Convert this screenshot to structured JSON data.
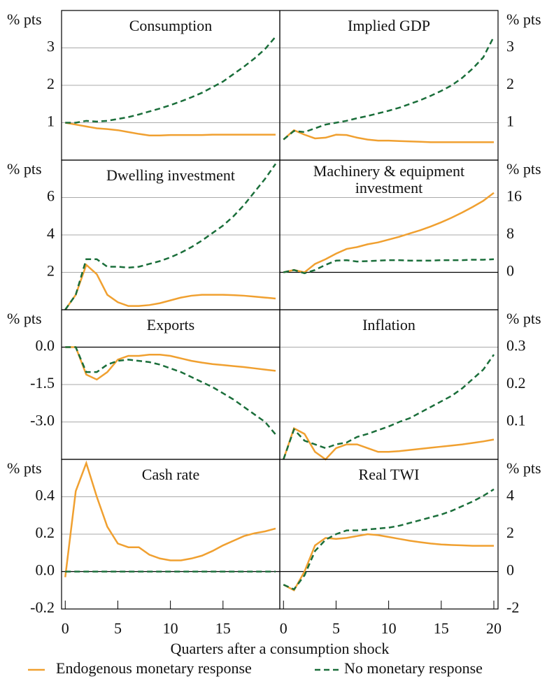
{
  "chart_data": [
    {
      "type": "line",
      "title": "Consumption",
      "y_label": "% pts",
      "side": "left",
      "x": [
        0,
        1,
        2,
        3,
        4,
        5,
        6,
        7,
        8,
        9,
        10,
        11,
        12,
        13,
        14,
        15,
        16,
        17,
        18,
        19,
        20
      ],
      "xlim": [
        -0.35,
        20.4
      ],
      "ylim": [
        0,
        4
      ],
      "yticks": [
        1,
        2,
        3
      ],
      "series": [
        {
          "name": "Endogenous monetary response",
          "color": "#f0a030",
          "style": "solid",
          "values": [
            1.0,
            0.95,
            0.9,
            0.85,
            0.83,
            0.8,
            0.75,
            0.7,
            0.66,
            0.66,
            0.67,
            0.67,
            0.67,
            0.67,
            0.68,
            0.68,
            0.68,
            0.68,
            0.68,
            0.68,
            0.68
          ]
        },
        {
          "name": "No monetary response",
          "color": "#1a6e3a",
          "style": "dashed",
          "values": [
            1.0,
            1.0,
            1.05,
            1.03,
            1.05,
            1.1,
            1.15,
            1.22,
            1.3,
            1.38,
            1.47,
            1.57,
            1.68,
            1.8,
            1.95,
            2.1,
            2.3,
            2.5,
            2.72,
            2.97,
            3.3
          ]
        }
      ]
    },
    {
      "type": "line",
      "title": "Implied GDP",
      "y_label": "% pts",
      "side": "right",
      "x": [
        0,
        1,
        2,
        3,
        4,
        5,
        6,
        7,
        8,
        9,
        10,
        11,
        12,
        13,
        14,
        15,
        16,
        17,
        18,
        19,
        20
      ],
      "xlim": [
        -0.35,
        20.4
      ],
      "ylim": [
        0,
        4
      ],
      "yticks": [
        1,
        2,
        3
      ],
      "series": [
        {
          "color": "#f0a030",
          "style": "solid",
          "values": [
            0.55,
            0.8,
            0.68,
            0.58,
            0.6,
            0.68,
            0.67,
            0.6,
            0.55,
            0.52,
            0.52,
            0.51,
            0.5,
            0.49,
            0.48,
            0.48,
            0.48,
            0.48,
            0.48,
            0.48,
            0.48
          ]
        },
        {
          "color": "#1a6e3a",
          "style": "dashed",
          "values": [
            0.55,
            0.78,
            0.75,
            0.85,
            0.95,
            1.0,
            1.05,
            1.12,
            1.18,
            1.25,
            1.32,
            1.4,
            1.5,
            1.6,
            1.72,
            1.85,
            2.0,
            2.2,
            2.45,
            2.75,
            3.3
          ]
        }
      ]
    },
    {
      "type": "line",
      "title": "Dwelling investment",
      "y_label": "% pts",
      "side": "left",
      "x": [
        0,
        1,
        2,
        3,
        4,
        5,
        6,
        7,
        8,
        9,
        10,
        11,
        12,
        13,
        14,
        15,
        16,
        17,
        18,
        19,
        20
      ],
      "xlim": [
        -0.35,
        20.4
      ],
      "ylim": [
        0,
        8
      ],
      "yticks": [
        2,
        4,
        6
      ],
      "series": [
        {
          "color": "#f0a030",
          "style": "solid",
          "values": [
            0,
            0.8,
            2.4,
            1.9,
            0.8,
            0.4,
            0.2,
            0.2,
            0.25,
            0.35,
            0.5,
            0.65,
            0.75,
            0.8,
            0.8,
            0.8,
            0.78,
            0.75,
            0.7,
            0.65,
            0.6
          ]
        },
        {
          "color": "#1a6e3a",
          "style": "dashed",
          "values": [
            0,
            0.8,
            2.7,
            2.7,
            2.3,
            2.3,
            2.25,
            2.3,
            2.45,
            2.6,
            2.8,
            3.05,
            3.35,
            3.7,
            4.1,
            4.5,
            5.0,
            5.6,
            6.3,
            7.0,
            7.8
          ]
        }
      ]
    },
    {
      "type": "line",
      "title": [
        "Machinery & equipment",
        "investment"
      ],
      "y_label": "% pts",
      "side": "right",
      "x": [
        0,
        1,
        2,
        3,
        4,
        5,
        6,
        7,
        8,
        9,
        10,
        11,
        12,
        13,
        14,
        15,
        16,
        17,
        18,
        19,
        20
      ],
      "xlim": [
        -0.35,
        20.4
      ],
      "ylim": [
        -8,
        24
      ],
      "yticks": [
        0,
        8,
        16
      ],
      "series": [
        {
          "color": "#f0a030",
          "style": "solid",
          "values": [
            0,
            0.5,
            0,
            1.8,
            2.8,
            4,
            5,
            5.4,
            6,
            6.4,
            7,
            7.6,
            8.3,
            9,
            9.8,
            10.7,
            11.7,
            12.8,
            14,
            15.3,
            17
          ]
        },
        {
          "color": "#1a6e3a",
          "style": "dashed",
          "values": [
            0,
            0.5,
            -0.2,
            0.5,
            1.6,
            2.5,
            2.6,
            2.3,
            2.4,
            2.5,
            2.6,
            2.6,
            2.5,
            2.5,
            2.5,
            2.6,
            2.6,
            2.6,
            2.7,
            2.7,
            2.8
          ]
        }
      ]
    },
    {
      "type": "line",
      "title": "Exports",
      "y_label": "% pts",
      "side": "left",
      "x": [
        0,
        1,
        2,
        3,
        4,
        5,
        6,
        7,
        8,
        9,
        10,
        11,
        12,
        13,
        14,
        15,
        16,
        17,
        18,
        19,
        20
      ],
      "xlim": [
        -0.35,
        20.4
      ],
      "ylim": [
        -4.5,
        1.5
      ],
      "yticks": [
        {
          "value": 0,
          "label": "0.0"
        },
        -1.5,
        {
          "value": -3,
          "label": "-3.0"
        }
      ],
      "series": [
        {
          "color": "#f0a030",
          "style": "solid",
          "values": [
            0,
            0,
            -1.1,
            -1.3,
            -1.0,
            -0.5,
            -0.35,
            -0.35,
            -0.3,
            -0.3,
            -0.35,
            -0.45,
            -0.55,
            -0.62,
            -0.68,
            -0.72,
            -0.76,
            -0.8,
            -0.85,
            -0.9,
            -0.95
          ]
        },
        {
          "color": "#1a6e3a",
          "style": "dashed",
          "values": [
            0,
            0,
            -1.0,
            -1.0,
            -0.7,
            -0.55,
            -0.5,
            -0.55,
            -0.6,
            -0.7,
            -0.85,
            -1.0,
            -1.2,
            -1.4,
            -1.6,
            -1.85,
            -2.1,
            -2.4,
            -2.7,
            -3.0,
            -3.5
          ]
        }
      ]
    },
    {
      "type": "line",
      "title": "Inflation",
      "y_label": "% pts",
      "side": "right",
      "x": [
        0,
        1,
        2,
        3,
        4,
        5,
        6,
        7,
        8,
        9,
        10,
        11,
        12,
        13,
        14,
        15,
        16,
        17,
        18,
        19,
        20
      ],
      "xlim": [
        -0.35,
        20.4
      ],
      "ylim": [
        0,
        0.4
      ],
      "yticks": [
        0.1,
        0.2,
        0.3
      ],
      "series": [
        {
          "color": "#f0a030",
          "style": "solid",
          "values": [
            0,
            0.083,
            0.068,
            0.02,
            0,
            0.03,
            0.04,
            0.04,
            0.03,
            0.02,
            0.02,
            0.022,
            0.025,
            0.028,
            0.031,
            0.034,
            0.037,
            0.04,
            0.044,
            0.048,
            0.053
          ]
        },
        {
          "color": "#1a6e3a",
          "style": "dashed",
          "values": [
            0,
            0.08,
            0.05,
            0.04,
            0.03,
            0.04,
            0.045,
            0.06,
            0.068,
            0.078,
            0.088,
            0.1,
            0.11,
            0.125,
            0.14,
            0.155,
            0.17,
            0.19,
            0.215,
            0.24,
            0.28
          ]
        }
      ]
    },
    {
      "type": "line",
      "title": "Cash rate",
      "y_label": "% pts",
      "side": "left",
      "x": [
        0,
        1,
        2,
        3,
        4,
        5,
        6,
        7,
        8,
        9,
        10,
        11,
        12,
        13,
        14,
        15,
        16,
        17,
        18,
        19,
        20
      ],
      "xlim": [
        -0.35,
        20.4
      ],
      "ylim": [
        -0.2,
        0.6
      ],
      "yticks": [
        -0.2,
        {
          "value": 0,
          "label": "0.0"
        },
        0.2,
        0.4
      ],
      "xticks": [
        0,
        5,
        10,
        15
      ],
      "series": [
        {
          "color": "#f0a030",
          "style": "solid",
          "values": [
            -0.03,
            0.43,
            0.58,
            0.4,
            0.24,
            0.15,
            0.13,
            0.13,
            0.09,
            0.07,
            0.06,
            0.06,
            0.07,
            0.085,
            0.11,
            0.14,
            0.165,
            0.19,
            0.205,
            0.215,
            0.23
          ]
        },
        {
          "color": "#1a6e3a",
          "style": "dashed",
          "values": [
            0,
            0,
            0,
            0,
            0,
            0,
            0,
            0,
            0,
            0,
            0,
            0,
            0,
            0,
            0,
            0,
            0,
            0,
            0,
            0,
            0
          ]
        }
      ]
    },
    {
      "type": "line",
      "title": "Real TWI",
      "y_label": "% pts",
      "side": "right",
      "x": [
        0,
        1,
        2,
        3,
        4,
        5,
        6,
        7,
        8,
        9,
        10,
        11,
        12,
        13,
        14,
        15,
        16,
        17,
        18,
        19,
        20
      ],
      "xlim": [
        -0.35,
        20.4
      ],
      "ylim": [
        -2,
        6
      ],
      "yticks": [
        -2,
        0,
        2,
        4
      ],
      "xticks": [
        0,
        5,
        10,
        15,
        20
      ],
      "series": [
        {
          "color": "#f0a030",
          "style": "solid",
          "values": [
            -0.7,
            -1.0,
            0,
            1.4,
            1.8,
            1.75,
            1.8,
            1.9,
            2.0,
            1.95,
            1.85,
            1.75,
            1.65,
            1.57,
            1.5,
            1.45,
            1.42,
            1.4,
            1.38,
            1.38,
            1.38
          ]
        },
        {
          "color": "#1a6e3a",
          "style": "dashed",
          "values": [
            -0.7,
            -0.95,
            -0.2,
            1.1,
            1.7,
            2.0,
            2.2,
            2.2,
            2.25,
            2.3,
            2.35,
            2.45,
            2.6,
            2.75,
            2.9,
            3.05,
            3.25,
            3.5,
            3.75,
            4.05,
            4.4
          ]
        }
      ]
    }
  ],
  "x_label": "Quarters after a consumption shock"
}
